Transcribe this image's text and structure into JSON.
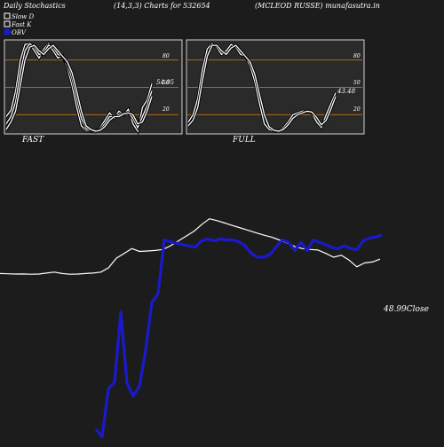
{
  "header": {
    "title": "Daily Stochastics",
    "params": "(14,3,3) Charts for 532654",
    "company": "(MCLEOD RUSSE) munafasutra.in"
  },
  "legend": {
    "items": [
      {
        "label": "Slow  D",
        "color": "#ffffff",
        "shape": "hollow-square"
      },
      {
        "label": "Fast K",
        "color": "#ffffff",
        "shape": "hollow-square"
      },
      {
        "label": "OBV",
        "color": "#1a1acc",
        "shape": "filled-square"
      }
    ]
  },
  "chart_data": [
    {
      "type": "line",
      "panel": "FAST",
      "xlabel": "FAST",
      "ylim": [
        0,
        100
      ],
      "ref_levels": [
        20,
        50,
        80
      ],
      "tick_labels": [
        "80",
        "50",
        "20"
      ],
      "value_label": "54.05",
      "series": [
        {
          "color": "#ffffff",
          "values": [
            18,
            25,
            46,
            80,
            97,
            98,
            90,
            82,
            92,
            98,
            90,
            82,
            85,
            72,
            52,
            28,
            8,
            3,
            2,
            1,
            6,
            14,
            22,
            16,
            24,
            20,
            26,
            10,
            2,
            28,
            36,
            54
          ]
        },
        {
          "color": "#ffffff",
          "values": [
            10,
            18,
            34,
            66,
            90,
            98,
            94,
            86,
            88,
            96,
            94,
            86,
            84,
            76,
            60,
            38,
            16,
            5,
            3,
            2,
            4,
            10,
            18,
            18,
            20,
            22,
            22,
            16,
            6,
            18,
            30,
            46
          ]
        },
        {
          "color": "#ffffff",
          "values": [
            4,
            12,
            24,
            52,
            80,
            94,
            96,
            90,
            86,
            92,
            96,
            90,
            84,
            78,
            66,
            46,
            24,
            8,
            4,
            2,
            3,
            7,
            14,
            18,
            18,
            21,
            22,
            20,
            10,
            12,
            24,
            40
          ]
        }
      ]
    },
    {
      "type": "line",
      "panel": "FULL",
      "xlabel": "FULL",
      "ylim": [
        0,
        100
      ],
      "ref_levels": [
        20,
        50,
        80
      ],
      "tick_labels": [
        "80",
        "50",
        "20"
      ],
      "value_label": "43.48",
      "series": [
        {
          "color": "#ffffff",
          "values": [
            12,
            20,
            38,
            70,
            92,
            98,
            94,
            86,
            90,
            97,
            94,
            86,
            84,
            74,
            56,
            32,
            10,
            4,
            2,
            2,
            6,
            12,
            20,
            22,
            24,
            24,
            22,
            12,
            6,
            20,
            32,
            44
          ]
        },
        {
          "color": "#ffffff",
          "values": [
            8,
            14,
            28,
            58,
            84,
            96,
            96,
            90,
            86,
            93,
            96,
            90,
            84,
            78,
            64,
            42,
            20,
            7,
            3,
            2,
            4,
            9,
            16,
            20,
            22,
            24,
            23,
            17,
            9,
            14,
            26,
            40
          ]
        }
      ]
    },
    {
      "type": "line",
      "panel": "OBV-CLOSE",
      "value_label": "48.99Close",
      "series": [
        {
          "color": "#ffffff",
          "values": [
            46.0,
            45.95,
            45.9,
            45.92,
            45.85,
            45.9,
            46.1,
            46.3,
            46.0,
            45.85,
            45.9,
            46.0,
            46.1,
            46.3,
            47.2,
            49.2,
            50.2,
            51.2,
            50.6,
            50.7,
            50.8,
            51.0,
            51.8,
            52.8,
            53.8,
            54.8,
            56.2,
            57.4,
            57.0,
            56.5,
            56.0,
            55.5,
            55.0,
            54.5,
            54.0,
            53.6,
            53.0,
            52.4,
            51.6,
            51.2,
            51.0,
            50.9,
            50.2,
            49.4,
            49.8,
            48.8,
            47.4,
            48.2,
            48.4,
            48.99
          ]
        },
        {
          "color": "#1a1acc",
          "values": [
            13.6,
            12.0,
            22.0,
            23.4,
            38.0,
            23.2,
            20.5,
            22.5,
            30.0,
            40.0,
            41.8,
            53.0,
            52.6,
            52.3,
            52.0,
            51.7,
            51.5,
            52.8,
            53.2,
            52.8,
            53.2,
            53.0,
            53.0,
            52.6,
            51.8,
            50.2,
            49.4,
            49.4,
            50.0,
            51.5,
            53.0,
            52.5,
            50.8,
            52.5,
            50.8,
            53.0,
            52.5,
            52.0,
            51.4,
            51.2,
            51.8,
            51.2,
            51.0,
            52.8,
            53.4,
            53.6,
            54.0
          ]
        }
      ]
    }
  ]
}
